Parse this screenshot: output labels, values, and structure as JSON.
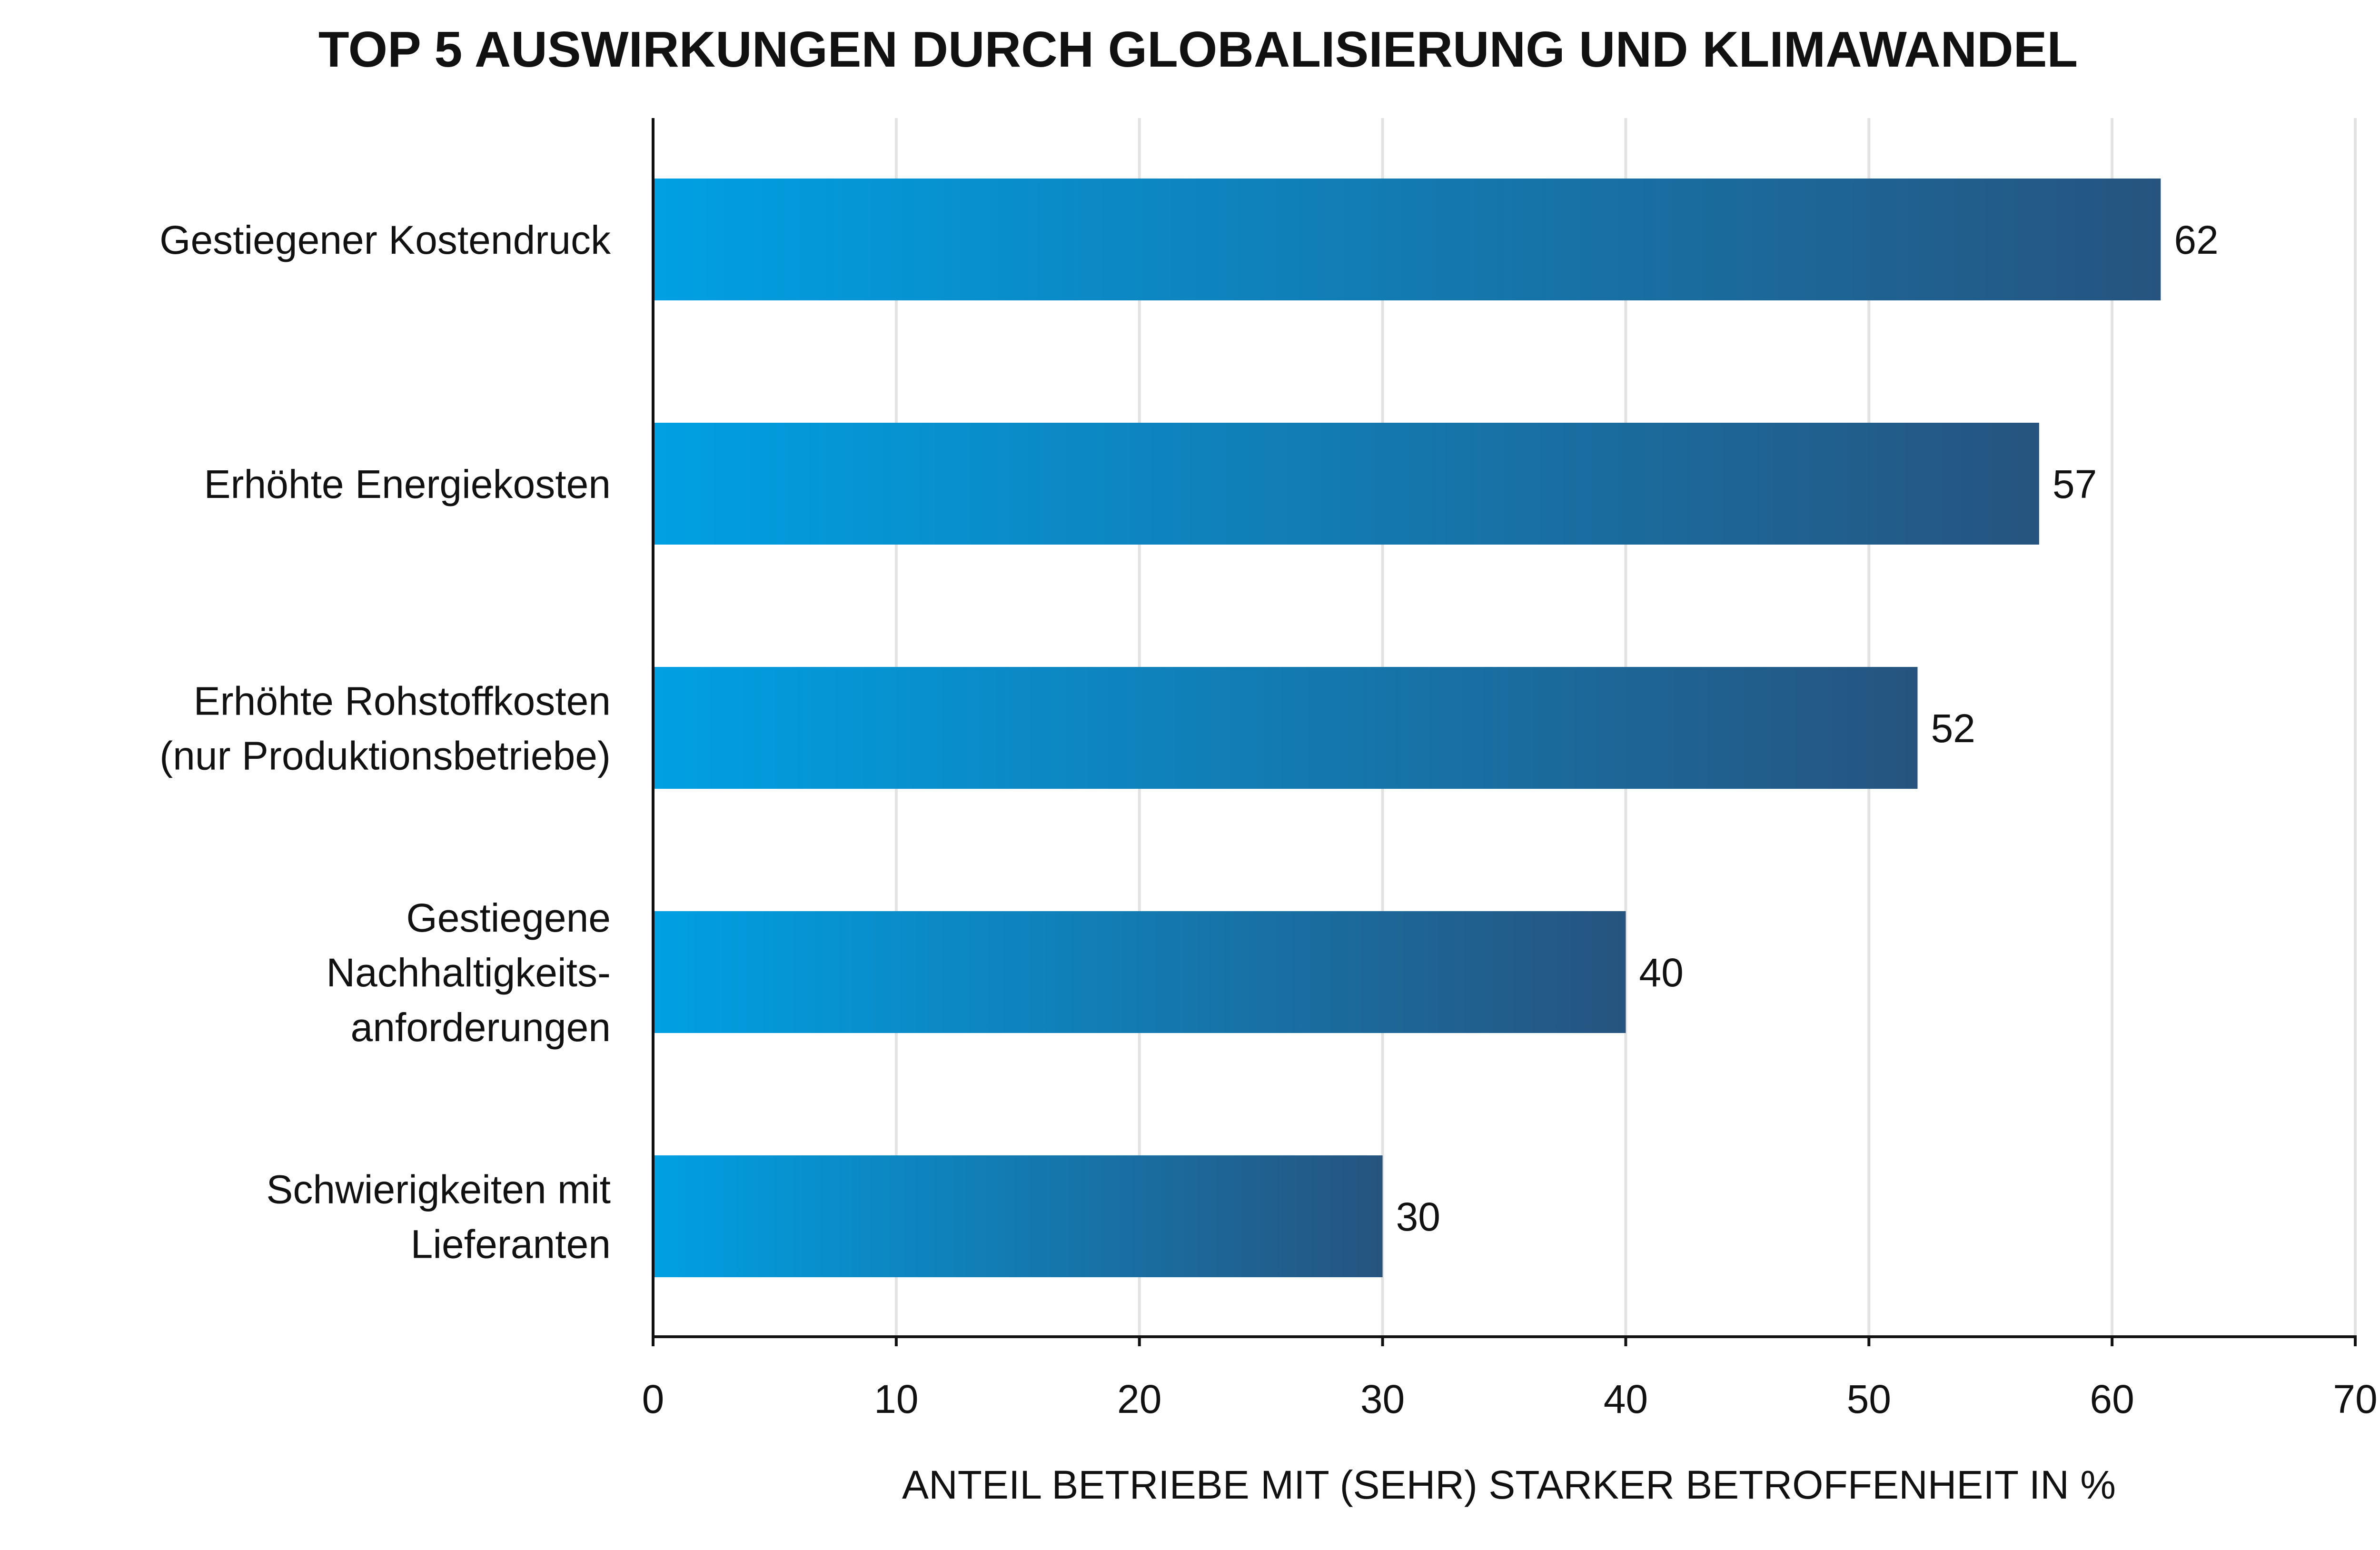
{
  "chart_data": {
    "type": "bar",
    "orientation": "horizontal",
    "title": "TOP 5 AUSWIRKUNGEN DURCH GLOBALISIERUNG UND KLIMAWANDEL",
    "xlabel": "ANTEIL BETRIEBE MIT (SEHR) STARKER BETROFFENHEIT IN %",
    "ylabel": "",
    "categories": [
      [
        "Gestiegener Kostendruck"
      ],
      [
        "Erhöhte Energiekosten"
      ],
      [
        "Erhöhte Rohstoffkosten",
        "(nur Produktionsbetriebe)"
      ],
      [
        "Gestiegene",
        "Nachhaltigkeits-",
        "anforderungen"
      ],
      [
        "Schwierigkeiten mit",
        "Lieferanten"
      ]
    ],
    "values": [
      62,
      57,
      52,
      40,
      30
    ],
    "xlim": [
      0,
      70
    ],
    "xticks": [
      0,
      10,
      20,
      30,
      40,
      50,
      60,
      70
    ],
    "grid": true,
    "data_labels": true,
    "legend": "none",
    "colors": {
      "bar_gradient_start": "#00a0e3",
      "bar_gradient_end": "#26547f",
      "grid": "#e2e2e2",
      "axis": "#111111",
      "text": "#111111"
    }
  }
}
